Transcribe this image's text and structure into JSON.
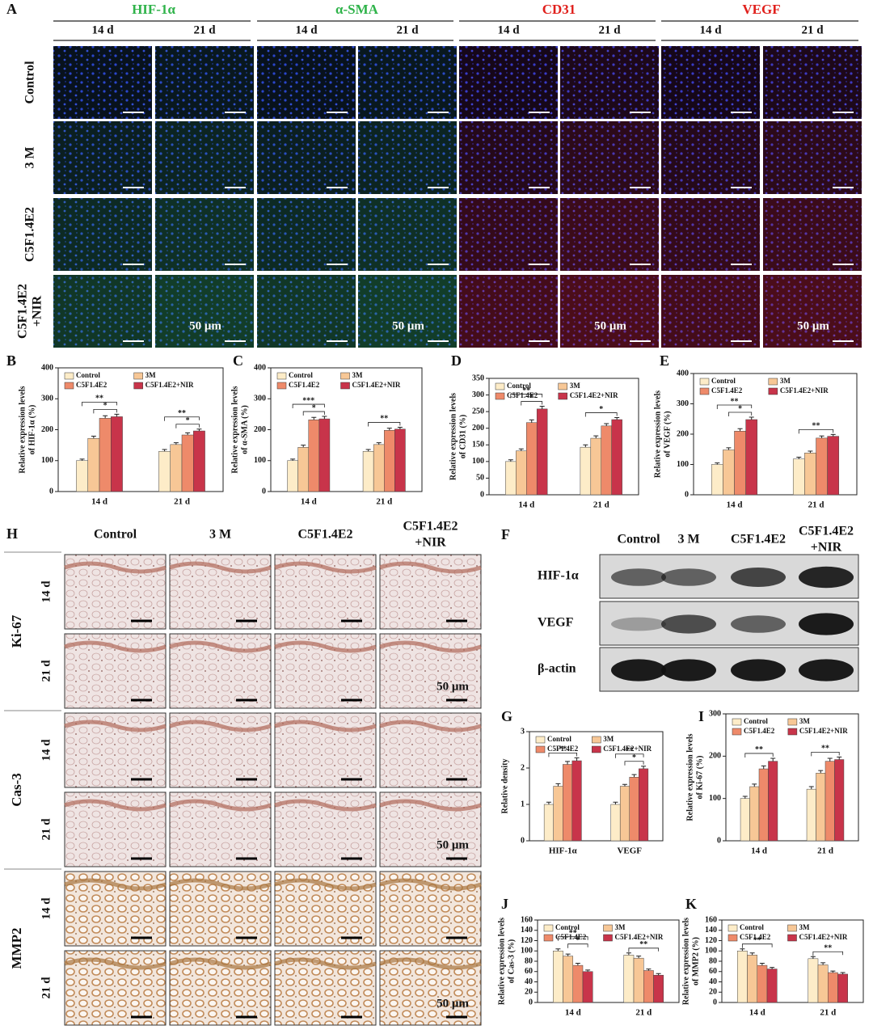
{
  "panel_a": {
    "label": "A",
    "markers": [
      {
        "text": "HIF-1α",
        "color": "#2fb34a"
      },
      {
        "text": "α-SMA",
        "color": "#2fb34a"
      },
      {
        "text": "CD31",
        "color": "#e0201c"
      },
      {
        "text": "VEGF",
        "color": "#e0201c"
      }
    ],
    "days": [
      "14 d",
      "21 d"
    ],
    "groups": [
      [
        "Control"
      ],
      [
        "3 M"
      ],
      [
        "C5F1.4E2"
      ],
      [
        "C5F1.4E2",
        "+NIR"
      ]
    ],
    "scale_bar": "50 μm"
  },
  "panel_f": {
    "label": "F",
    "groups": [
      [
        "Control"
      ],
      [
        "3 M"
      ],
      [
        "C5F1.4E2"
      ],
      [
        "C5F1.4E2",
        "+NIR"
      ]
    ],
    "proteins": [
      "HIF-1α",
      "VEGF",
      "β-actin"
    ]
  },
  "panel_h": {
    "label": "H",
    "groups": [
      [
        "Control"
      ],
      [
        "3 M"
      ],
      [
        "C5F1.4E2"
      ],
      [
        "C5F1.4E2",
        "+NIR"
      ]
    ],
    "markers": [
      "Ki-67",
      "Cas-3",
      "MMP2"
    ],
    "days": [
      "14 d",
      "21 d"
    ],
    "scale_bar": "50 μm"
  },
  "chart_data": [
    {
      "type": "bar",
      "label": "B",
      "ylabel": [
        "Relative expression levels",
        "of HIF-1α (%)"
      ],
      "categories": [
        "14 d",
        "21 d"
      ],
      "series": [
        {
          "name": "Control",
          "color": "#fdecc8",
          "values": [
            100,
            130
          ],
          "errors": [
            5,
            6
          ]
        },
        {
          "name": "3M",
          "color": "#f7c796",
          "values": [
            172,
            152
          ],
          "errors": [
            7,
            6
          ]
        },
        {
          "name": "C5F1.4E2",
          "color": "#ee8a6a",
          "values": [
            237,
            183
          ],
          "errors": [
            8,
            7
          ]
        },
        {
          "name": "C5F1.4E2+NIR",
          "color": "#c8344a",
          "values": [
            242,
            196
          ],
          "errors": [
            8,
            6
          ]
        }
      ],
      "ylim": [
        0,
        400
      ],
      "yticks": [
        0,
        100,
        200,
        300,
        400
      ],
      "significance": [
        [
          "**",
          "*"
        ],
        [
          "**",
          "*"
        ]
      ]
    },
    {
      "type": "bar",
      "label": "C",
      "ylabel": [
        "Relative expression levels",
        "of α-SMA (%)"
      ],
      "categories": [
        "14 d",
        "21 d"
      ],
      "series": [
        {
          "name": "Control",
          "color": "#fdecc8",
          "values": [
            100,
            130
          ],
          "errors": [
            5,
            6
          ]
        },
        {
          "name": "3M",
          "color": "#f7c796",
          "values": [
            143,
            152
          ],
          "errors": [
            7,
            6
          ]
        },
        {
          "name": "C5F1.4E2",
          "color": "#ee8a6a",
          "values": [
            232,
            198
          ],
          "errors": [
            8,
            7
          ]
        },
        {
          "name": "C5F1.4E2+NIR",
          "color": "#c8344a",
          "values": [
            235,
            202
          ],
          "errors": [
            8,
            6
          ]
        }
      ],
      "ylim": [
        0,
        400
      ],
      "yticks": [
        0,
        100,
        200,
        300,
        400
      ],
      "significance": [
        [
          "***",
          "*"
        ],
        [
          "**"
        ]
      ]
    },
    {
      "type": "bar",
      "label": "D",
      "ylabel": [
        "Relative expression levels",
        "of CD31 (%)"
      ],
      "categories": [
        "14 d",
        "21 d"
      ],
      "series": [
        {
          "name": "Control",
          "color": "#fdecc8",
          "values": [
            100,
            143
          ],
          "errors": [
            5,
            7
          ]
        },
        {
          "name": "3M",
          "color": "#f7c796",
          "values": [
            132,
            170
          ],
          "errors": [
            6,
            7
          ]
        },
        {
          "name": "C5F1.4E2",
          "color": "#ee8a6a",
          "values": [
            217,
            207
          ],
          "errors": [
            8,
            7
          ]
        },
        {
          "name": "C5F1.4E2+NIR",
          "color": "#c8344a",
          "values": [
            258,
            226
          ],
          "errors": [
            8,
            6
          ]
        }
      ],
      "ylim": [
        0,
        350
      ],
      "yticks": [
        0,
        50,
        100,
        150,
        200,
        250,
        300,
        350
      ],
      "significance": [
        [
          "**",
          "*"
        ],
        [
          "*"
        ]
      ]
    },
    {
      "type": "bar",
      "label": "E",
      "ylabel": [
        "Relative expression levels",
        "of VEGF (%)"
      ],
      "categories": [
        "14 d",
        "21 d"
      ],
      "series": [
        {
          "name": "Control",
          "color": "#fdecc8",
          "values": [
            100,
            118
          ],
          "errors": [
            5,
            6
          ]
        },
        {
          "name": "3M",
          "color": "#f7c796",
          "values": [
            148,
            138
          ],
          "errors": [
            7,
            6
          ]
        },
        {
          "name": "C5F1.4E2",
          "color": "#ee8a6a",
          "values": [
            210,
            187
          ],
          "errors": [
            8,
            7
          ]
        },
        {
          "name": "C5F1.4E2+NIR",
          "color": "#c8344a",
          "values": [
            248,
            193
          ],
          "errors": [
            8,
            6
          ]
        }
      ],
      "ylim": [
        0,
        400
      ],
      "yticks": [
        0,
        100,
        200,
        300,
        400
      ],
      "significance": [
        [
          "**",
          "*"
        ],
        [
          "**"
        ]
      ]
    },
    {
      "type": "bar",
      "label": "G",
      "ylabel": [
        "Relative density"
      ],
      "categories": [
        "HIF-1α",
        "VEGF"
      ],
      "series": [
        {
          "name": "Control",
          "color": "#fdecc8",
          "values": [
            1.0,
            1.0
          ],
          "errors": [
            0.06,
            0.06
          ]
        },
        {
          "name": "3M",
          "color": "#f7c796",
          "values": [
            1.5,
            1.5
          ],
          "errors": [
            0.07,
            0.05
          ]
        },
        {
          "name": "C5F1.4E2",
          "color": "#ee8a6a",
          "values": [
            2.1,
            1.75
          ],
          "errors": [
            0.08,
            0.07
          ]
        },
        {
          "name": "C5F1.4E2+NIR",
          "color": "#c8344a",
          "values": [
            2.2,
            1.98
          ],
          "errors": [
            0.08,
            0.07
          ]
        }
      ],
      "ylim": [
        0,
        3
      ],
      "yticks": [
        0,
        1,
        2,
        3
      ],
      "significance": [
        [
          "**"
        ],
        [
          "**",
          "*"
        ]
      ]
    },
    {
      "type": "bar",
      "label": "I",
      "ylabel": [
        "Relative expression levels",
        "of Ki-67 (%)"
      ],
      "categories": [
        "14 d",
        "21 d"
      ],
      "series": [
        {
          "name": "Control",
          "color": "#fdecc8",
          "values": [
            100,
            122
          ],
          "errors": [
            5,
            6
          ]
        },
        {
          "name": "3M",
          "color": "#f7c796",
          "values": [
            128,
            160
          ],
          "errors": [
            6,
            6
          ]
        },
        {
          "name": "C5F1.4E2",
          "color": "#ee8a6a",
          "values": [
            170,
            188
          ],
          "errors": [
            7,
            7
          ]
        },
        {
          "name": "C5F1.4E2+NIR",
          "color": "#c8344a",
          "values": [
            188,
            192
          ],
          "errors": [
            7,
            6
          ]
        }
      ],
      "ylim": [
        0,
        300
      ],
      "yticks": [
        0,
        100,
        200,
        300
      ],
      "significance": [
        [
          "**"
        ],
        [
          "**"
        ]
      ]
    },
    {
      "type": "bar",
      "label": "J",
      "ylabel": [
        "Relative expression levels",
        "of Cas-3 (%)"
      ],
      "categories": [
        "14 d",
        "21 d"
      ],
      "series": [
        {
          "name": "Control",
          "color": "#fdecc8",
          "values": [
            100,
            92
          ],
          "errors": [
            4,
            4
          ]
        },
        {
          "name": "3M",
          "color": "#f7c796",
          "values": [
            90,
            86
          ],
          "errors": [
            4,
            4
          ]
        },
        {
          "name": "C5F1.4E2",
          "color": "#ee8a6a",
          "values": [
            72,
            62
          ],
          "errors": [
            4,
            3
          ]
        },
        {
          "name": "C5F1.4E2+NIR",
          "color": "#c8344a",
          "values": [
            60,
            53
          ],
          "errors": [
            3,
            3
          ]
        }
      ],
      "ylim": [
        0,
        160
      ],
      "yticks": [
        0,
        20,
        40,
        60,
        80,
        100,
        120,
        140,
        160
      ],
      "significance": [
        [
          "**",
          "*"
        ],
        [
          "**"
        ]
      ]
    },
    {
      "type": "bar",
      "label": "K",
      "ylabel": [
        "Relative expression levels",
        "of MMP2 (%)"
      ],
      "categories": [
        "14 d",
        "21 d"
      ],
      "series": [
        {
          "name": "Control",
          "color": "#fdecc8",
          "values": [
            100,
            85
          ],
          "errors": [
            4,
            4
          ]
        },
        {
          "name": "3M",
          "color": "#f7c796",
          "values": [
            92,
            73
          ],
          "errors": [
            4,
            4
          ]
        },
        {
          "name": "C5F1.4E2",
          "color": "#ee8a6a",
          "values": [
            72,
            58
          ],
          "errors": [
            4,
            3
          ]
        },
        {
          "name": "C5F1.4E2+NIR",
          "color": "#c8344a",
          "values": [
            65,
            55
          ],
          "errors": [
            3,
            3
          ]
        }
      ],
      "ylim": [
        0,
        160
      ],
      "yticks": [
        0,
        20,
        40,
        60,
        80,
        100,
        120,
        140,
        160
      ],
      "significance": [
        [
          "**"
        ],
        [
          "**"
        ]
      ]
    }
  ]
}
